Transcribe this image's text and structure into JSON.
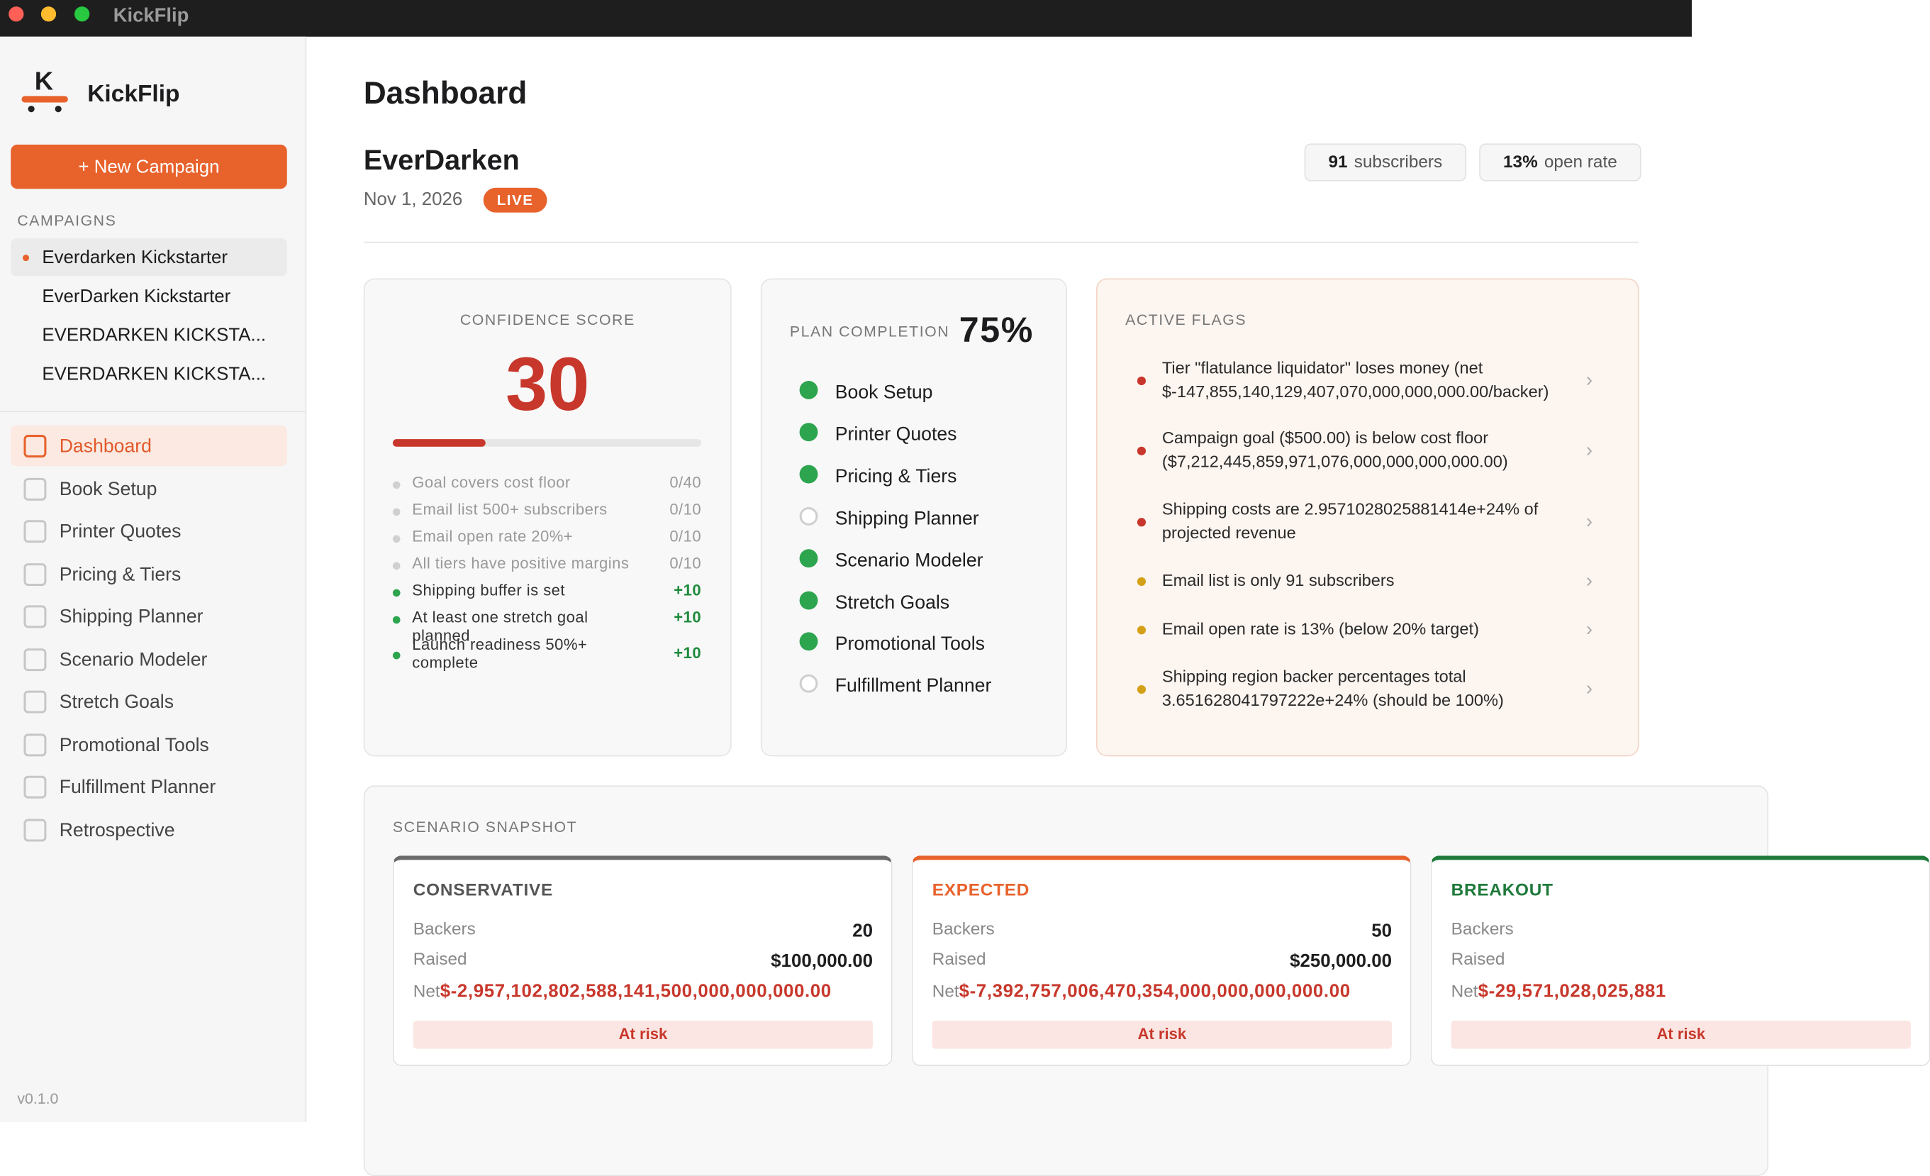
{
  "window": {
    "title": "KickFlip"
  },
  "sidebar": {
    "logo_letter": "K",
    "app_name": "KickFlip",
    "new_campaign_button": "+ New Campaign",
    "campaigns_label": "CAMPAIGNS",
    "campaigns": [
      {
        "name": "Everdarken Kickstarter",
        "active": true
      },
      {
        "name": "EverDarken Kickstarter",
        "active": false
      },
      {
        "name": "EVERDARKEN KICKSTA...",
        "active": false
      },
      {
        "name": "EVERDARKEN KICKSTA...",
        "active": false
      }
    ],
    "nav": [
      {
        "label": "Dashboard",
        "active": true
      },
      {
        "label": "Book Setup",
        "active": false
      },
      {
        "label": "Printer Quotes",
        "active": false
      },
      {
        "label": "Pricing & Tiers",
        "active": false
      },
      {
        "label": "Shipping Planner",
        "active": false
      },
      {
        "label": "Scenario Modeler",
        "active": false
      },
      {
        "label": "Stretch Goals",
        "active": false
      },
      {
        "label": "Promotional Tools",
        "active": false
      },
      {
        "label": "Fulfillment Planner",
        "active": false
      },
      {
        "label": "Retrospective",
        "active": false
      }
    ],
    "version": "v0.1.0"
  },
  "header": {
    "title": "Dashboard",
    "campaign_name": "EverDarken",
    "date": "Nov 1, 2026",
    "status": "LIVE",
    "stats": [
      {
        "value": "91",
        "label": "subscribers"
      },
      {
        "value": "13%",
        "label": "open rate"
      }
    ]
  },
  "confidence": {
    "title": "CONFIDENCE SCORE",
    "score": 30,
    "criteria": [
      {
        "label": "Goal covers cost floor",
        "points": "0/40",
        "met": false
      },
      {
        "label": "Email list 500+ subscribers",
        "points": "0/10",
        "met": false
      },
      {
        "label": "Email open rate 20%+",
        "points": "0/10",
        "met": false
      },
      {
        "label": "All tiers have positive margins",
        "points": "0/10",
        "met": false
      },
      {
        "label": "Shipping buffer is set",
        "points": "+10",
        "met": true
      },
      {
        "label": "At least one stretch goal planned",
        "points": "+10",
        "met": true
      },
      {
        "label": "Launch readiness 50%+ complete",
        "points": "+10",
        "met": true
      }
    ]
  },
  "plan": {
    "title": "PLAN COMPLETION",
    "percent": "75%",
    "steps": [
      {
        "label": "Book Setup",
        "done": true
      },
      {
        "label": "Printer Quotes",
        "done": true
      },
      {
        "label": "Pricing & Tiers",
        "done": true
      },
      {
        "label": "Shipping Planner",
        "done": false
      },
      {
        "label": "Scenario Modeler",
        "done": true
      },
      {
        "label": "Stretch Goals",
        "done": true
      },
      {
        "label": "Promotional Tools",
        "done": true
      },
      {
        "label": "Fulfillment Planner",
        "done": false
      }
    ]
  },
  "flags": {
    "title": "ACTIVE FLAGS",
    "items": [
      {
        "text": "Tier \"flatulance liquidator\" loses money (net $-147,855,140,129,407,070,000,000,000.00/backer)",
        "severity": "high"
      },
      {
        "text": "Campaign goal ($500.00) is below cost floor ($7,212,445,859,971,076,000,000,000,000.00)",
        "severity": "high"
      },
      {
        "text": "Shipping costs are 2.9571028025881414e+24% of projected revenue",
        "severity": "high"
      },
      {
        "text": "Email list is only 91 subscribers",
        "severity": "medium"
      },
      {
        "text": "Email open rate is 13% (below 20% target)",
        "severity": "medium"
      },
      {
        "text": "Shipping region backer percentages total 3.651628041797222e+24% (should be 100%)",
        "severity": "medium"
      }
    ]
  },
  "scenarios": {
    "title": "SCENARIO SNAPSHOT",
    "backers_label": "Backers",
    "raised_label": "Raised",
    "net_label": "Net",
    "items": [
      {
        "name": "CONSERVATIVE",
        "color": "#6b6b6b",
        "backers": "20",
        "raised": "$100,000.00",
        "net": "$-2,957,102,802,588,141,500,000,000,000.00",
        "status": "At risk"
      },
      {
        "name": "EXPECTED",
        "color": "#e8622c",
        "backers": "50",
        "raised": "$250,000.00",
        "net": "$-7,392,757,006,470,354,000,000,000,000.00",
        "status": "At risk"
      },
      {
        "name": "BREAKOUT",
        "color": "#1e7a3a",
        "net": "$-29,571,028,025,881",
        "status": "At risk"
      }
    ]
  }
}
